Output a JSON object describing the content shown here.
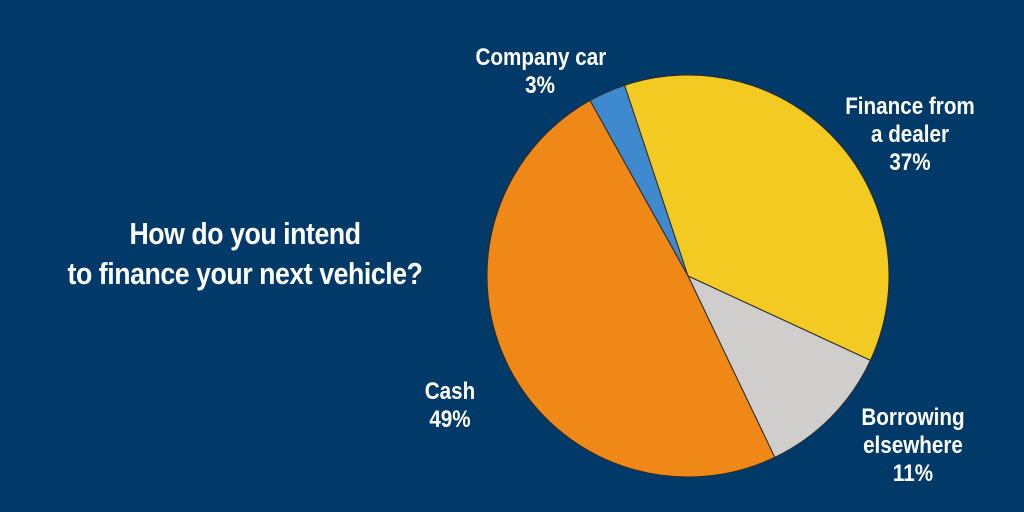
{
  "chart_data": {
    "type": "pie",
    "title_lines": [
      "How do you intend",
      "to finance your next vehicle?"
    ],
    "slices": [
      {
        "label_lines": [
          "Company car"
        ],
        "value_label": "3%",
        "value": 3,
        "color": "#3f89cf"
      },
      {
        "label_lines": [
          "Finance from",
          "a dealer"
        ],
        "value_label": "37%",
        "value": 37,
        "color": "#f3ca21"
      },
      {
        "label_lines": [
          "Borrowing",
          "elsewhere"
        ],
        "value_label": "11%",
        "value": 11,
        "color": "#cfcecc"
      },
      {
        "label_lines": [
          "Cash"
        ],
        "value_label": "49%",
        "value": 49,
        "color": "#f08818"
      }
    ]
  }
}
